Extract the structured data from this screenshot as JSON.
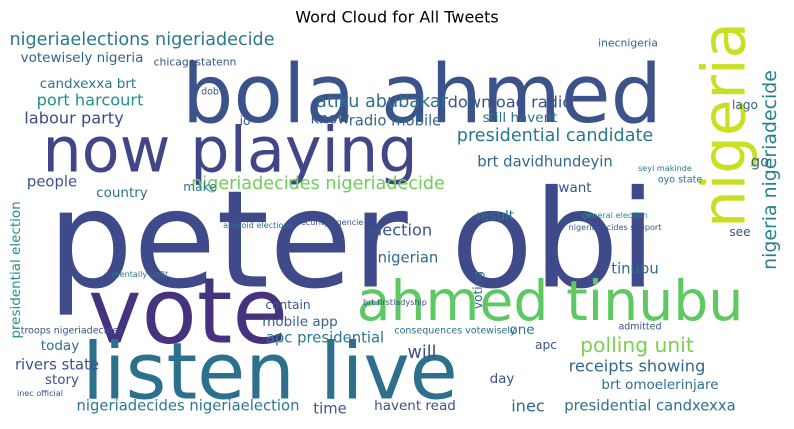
{
  "chart_data": {
    "type": "wordcloud",
    "title": "Word Cloud for All Tweets",
    "words": [
      {
        "text": "peter obi",
        "weight": 1.0,
        "color": "#3e4a89"
      },
      {
        "text": "bola ahmed",
        "weight": 0.6,
        "color": "#3b528b"
      },
      {
        "text": "vote",
        "weight": 0.67,
        "color": "#46327e"
      },
      {
        "text": "listen live",
        "weight": 0.58,
        "color": "#2d708e"
      },
      {
        "text": "now playing",
        "weight": 0.46,
        "color": "#404688"
      },
      {
        "text": "ahmed tinubu",
        "weight": 0.41,
        "color": "#5ec962"
      },
      {
        "text": "nigeria",
        "weight": 0.44,
        "color": "#c8e020"
      },
      {
        "text": "nigeria nigeriadecide",
        "weight": 0.14,
        "color": "#26828e"
      },
      {
        "text": "nigeriaelections nigeriadecide",
        "weight": 0.13,
        "color": "#2a788e"
      },
      {
        "text": "atiku abubakar",
        "weight": 0.13,
        "color": "#2c728e"
      },
      {
        "text": "download radio",
        "weight": 0.12,
        "color": "#3b528b"
      },
      {
        "text": "radio mobile",
        "weight": 0.11,
        "color": "#31688e"
      },
      {
        "text": "know",
        "weight": 0.11,
        "color": "#38588c"
      },
      {
        "text": "votewisely nigeria",
        "weight": 0.1,
        "color": "#33638d"
      },
      {
        "text": "candxexxa brt",
        "weight": 0.1,
        "color": "#2a788e"
      },
      {
        "text": "port harcourt",
        "weight": 0.12,
        "color": "#21918c"
      },
      {
        "text": "labour party",
        "weight": 0.12,
        "color": "#3e4989"
      },
      {
        "text": "still havent",
        "weight": 0.1,
        "color": "#2c728e"
      },
      {
        "text": "presidential candidate",
        "weight": 0.13,
        "color": "#2a788e"
      },
      {
        "text": "brt davidhundeyin",
        "weight": 0.11,
        "color": "#31688e"
      },
      {
        "text": "nigeriadecides nigeriadecide",
        "weight": 0.13,
        "color": "#6ece58"
      },
      {
        "text": "people",
        "weight": 0.11,
        "color": "#3b528b"
      },
      {
        "text": "country",
        "weight": 0.1,
        "color": "#2c728e"
      },
      {
        "text": "make",
        "weight": 0.09,
        "color": "#2a788e"
      },
      {
        "text": "election",
        "weight": 0.12,
        "color": "#3b528b"
      },
      {
        "text": "nigerian",
        "weight": 0.11,
        "color": "#31688e"
      },
      {
        "text": "result",
        "weight": 0.1,
        "color": "#2c728e"
      },
      {
        "text": "want",
        "weight": 0.1,
        "color": "#3b528b"
      },
      {
        "text": "go",
        "weight": 0.11,
        "color": "#33638d"
      },
      {
        "text": "presidential election",
        "weight": 0.1,
        "color": "#21918c"
      },
      {
        "text": "contain",
        "weight": 0.09,
        "color": "#38588c"
      },
      {
        "text": "mobile app",
        "weight": 0.1,
        "color": "#33638d"
      },
      {
        "text": "apc presidential",
        "weight": 0.11,
        "color": "#2a788e"
      },
      {
        "text": "polling unit",
        "weight": 0.15,
        "color": "#7ad151"
      },
      {
        "text": "will",
        "weight": 0.13,
        "color": "#3b528b"
      },
      {
        "text": "receipts showing",
        "weight": 0.12,
        "color": "#31688e"
      },
      {
        "text": "brt omoelerinjare",
        "weight": 0.1,
        "color": "#2c728e"
      },
      {
        "text": "presidential candxexxa",
        "weight": 0.11,
        "color": "#2c728e"
      },
      {
        "text": "inec",
        "weight": 0.12,
        "color": "#31688e"
      },
      {
        "text": "time",
        "weight": 0.11,
        "color": "#3b528b"
      },
      {
        "text": "havent read",
        "weight": 0.1,
        "color": "#3b528b"
      },
      {
        "text": "nigeriadecides nigeriaelection",
        "weight": 0.11,
        "color": "#2a788e"
      },
      {
        "text": "rivers state",
        "weight": 0.11,
        "color": "#3b528b"
      },
      {
        "text": "story",
        "weight": 0.1,
        "color": "#3b528b"
      },
      {
        "text": "today",
        "weight": 0.1,
        "color": "#2c728e"
      },
      {
        "text": "day",
        "weight": 0.1,
        "color": "#3b528b"
      },
      {
        "text": "apc",
        "weight": 0.09,
        "color": "#3b528b"
      },
      {
        "text": "tinubu",
        "weight": 0.11,
        "color": "#31688e"
      },
      {
        "text": "inecnigeria",
        "weight": 0.08,
        "color": "#33638d"
      },
      {
        "text": "chicagostatenn",
        "weight": 0.08,
        "color": "#3b528b"
      },
      {
        "text": "lago",
        "weight": 0.09,
        "color": "#33638d"
      },
      {
        "text": "see",
        "weight": 0.09,
        "color": "#3b528b"
      },
      {
        "text": "one",
        "weight": 0.1,
        "color": "#2c728e"
      },
      {
        "text": "voting",
        "weight": 0.09,
        "color": "#31688e"
      },
      {
        "text": "security agencie",
        "weight": 0.06,
        "color": "#3b528b"
      },
      {
        "text": "android elections",
        "weight": 0.06,
        "color": "#2c728e"
      },
      {
        "text": "general election",
        "weight": 0.06,
        "color": "#21918c"
      },
      {
        "text": "nigeriadecides support",
        "weight": 0.06,
        "color": "#3b528b"
      },
      {
        "text": "oyo state",
        "weight": 0.07,
        "color": "#2c728e"
      },
      {
        "text": "seyi makinde",
        "weight": 0.06,
        "color": "#2a788e"
      },
      {
        "text": "io",
        "weight": 0.09,
        "color": "#3b528b"
      },
      {
        "text": "dob",
        "weight": 0.07,
        "color": "#3b528b"
      },
      {
        "text": "consequences votewisely",
        "weight": 0.07,
        "color": "#2c728e"
      },
      {
        "text": "admitted",
        "weight": 0.07,
        "color": "#3b528b"
      },
      {
        "text": "mentally unfit",
        "weight": 0.06,
        "color": "#2a788e"
      },
      {
        "text": "brt firstladyship",
        "weight": 0.06,
        "color": "#3b528b"
      },
      {
        "text": "troops nigeriadecides",
        "weight": 0.07,
        "color": "#3b528b"
      },
      {
        "text": "inec official",
        "weight": 0.06,
        "color": "#3b528b"
      }
    ]
  }
}
